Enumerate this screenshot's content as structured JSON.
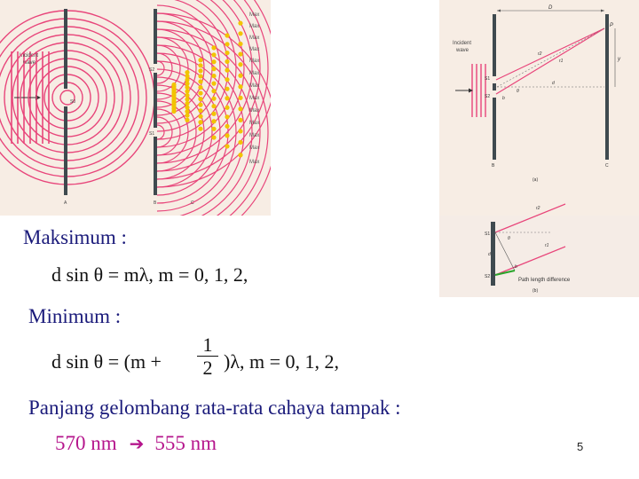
{
  "left_figure": {
    "incident_label": "Incident wave",
    "slit_labels": [
      "S0",
      "S1",
      "S2"
    ],
    "screen_labels": [
      "A",
      "B",
      "C"
    ],
    "max_labels": [
      "Max",
      "Max",
      "Max",
      "Max",
      "Max",
      "Max",
      "Max",
      "Max",
      "Max",
      "Max",
      "Max",
      "Max",
      "Max"
    ]
  },
  "right_figure_a": {
    "incident_label": "Incident wave",
    "distance_label": "D",
    "point_label": "P",
    "path_labels": [
      "r2",
      "r1"
    ],
    "height_label": "y",
    "slit_labels": [
      "S1",
      "S2"
    ],
    "separation_label": "d",
    "angle_label": "θ",
    "midpoint_label": "b",
    "screen_labels": [
      "B",
      "C"
    ],
    "caption": "(a)"
  },
  "right_figure_b": {
    "path_labels": [
      "r2",
      "r1"
    ],
    "slit_labels": [
      "S1",
      "S2"
    ],
    "angle_label": "θ",
    "separation_label": "d",
    "point_label": "b",
    "path_difference_label": "Path length difference",
    "caption": "(b)"
  },
  "content": {
    "max_heading": "Maksimum :",
    "max_equation": "d sin θ = mλ,     m = 0, 1, 2,",
    "min_heading": "Minimum :",
    "min_equation_left": "d sin θ = (m +",
    "min_fraction_num": "1",
    "min_fraction_den": "2",
    "min_equation_right": ")λ,     m = 0, 1, 2,",
    "wavelength_heading": "Panjang gelombang rata-rata cahaya tampak :",
    "wavelength_from": "570 nm",
    "wavelength_arrow": "➔",
    "wavelength_to": "555 nm"
  },
  "slide_number": "5",
  "colors": {
    "figure_bg": "#f7ede4",
    "wave": "#e8457a",
    "maxima": "#f2c400",
    "barrier": "#3f4a4f",
    "heading_text": "#1a1a7a",
    "accent_text": "#b5158c"
  }
}
